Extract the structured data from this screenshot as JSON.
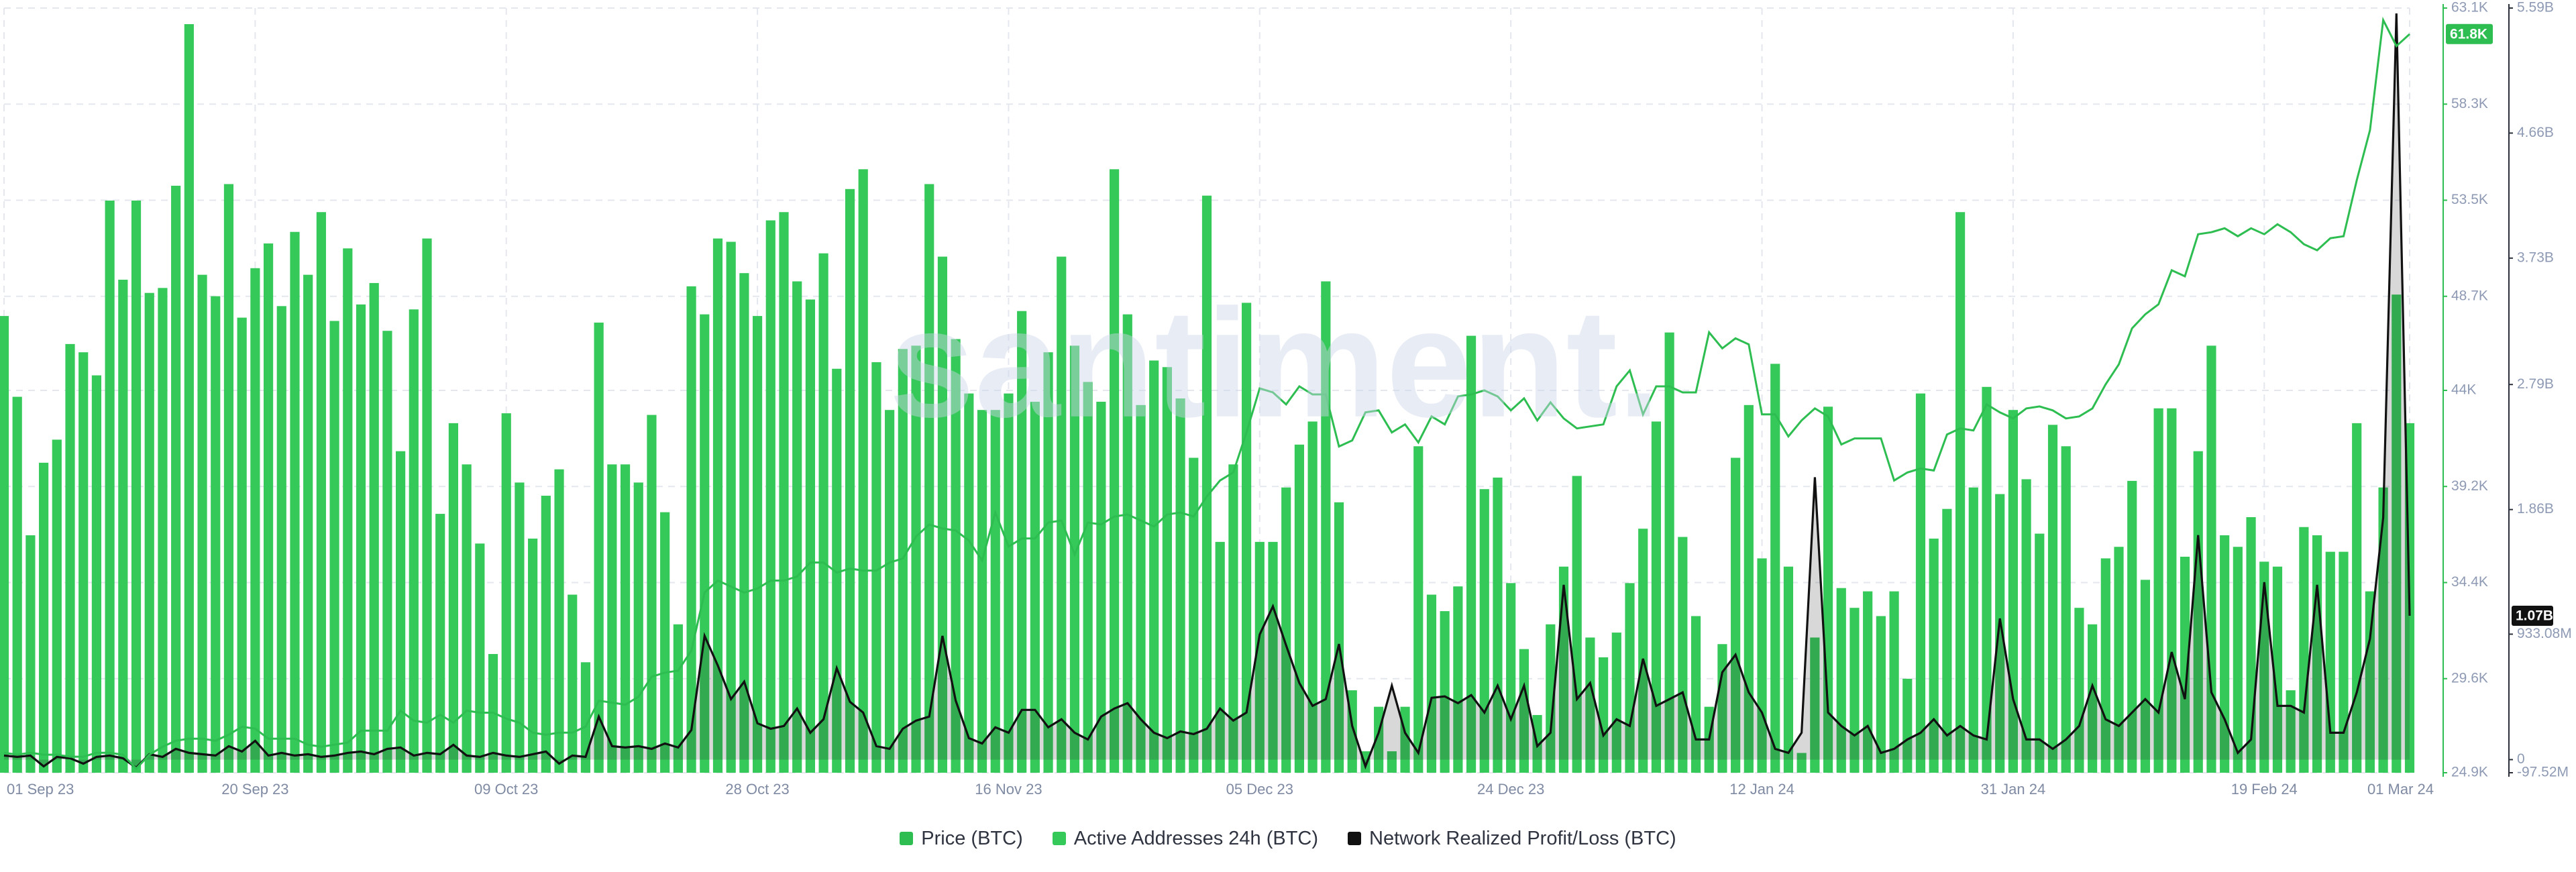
{
  "chart_data": {
    "type": "combo",
    "watermark": "santiment.",
    "grid": true,
    "x": [
      "2023-09-01",
      "2023-09-02",
      "2023-09-03",
      "2023-09-04",
      "2023-09-05",
      "2023-09-06",
      "2023-09-07",
      "2023-09-08",
      "2023-09-09",
      "2023-09-10",
      "2023-09-11",
      "2023-09-12",
      "2023-09-13",
      "2023-09-14",
      "2023-09-15",
      "2023-09-16",
      "2023-09-17",
      "2023-09-18",
      "2023-09-19",
      "2023-09-20",
      "2023-09-21",
      "2023-09-22",
      "2023-09-23",
      "2023-09-24",
      "2023-09-25",
      "2023-09-26",
      "2023-09-27",
      "2023-09-28",
      "2023-09-29",
      "2023-09-30",
      "2023-10-01",
      "2023-10-02",
      "2023-10-03",
      "2023-10-04",
      "2023-10-05",
      "2023-10-06",
      "2023-10-07",
      "2023-10-08",
      "2023-10-09",
      "2023-10-10",
      "2023-10-11",
      "2023-10-12",
      "2023-10-13",
      "2023-10-14",
      "2023-10-15",
      "2023-10-16",
      "2023-10-17",
      "2023-10-18",
      "2023-10-19",
      "2023-10-20",
      "2023-10-21",
      "2023-10-22",
      "2023-10-23",
      "2023-10-24",
      "2023-10-25",
      "2023-10-26",
      "2023-10-27",
      "2023-10-28",
      "2023-10-29",
      "2023-10-30",
      "2023-10-31",
      "2023-11-01",
      "2023-11-02",
      "2023-11-03",
      "2023-11-04",
      "2023-11-05",
      "2023-11-06",
      "2023-11-07",
      "2023-11-08",
      "2023-11-09",
      "2023-11-10",
      "2023-11-11",
      "2023-11-12",
      "2023-11-13",
      "2023-11-14",
      "2023-11-15",
      "2023-11-16",
      "2023-11-17",
      "2023-11-18",
      "2023-11-19",
      "2023-11-20",
      "2023-11-21",
      "2023-11-22",
      "2023-11-23",
      "2023-11-24",
      "2023-11-25",
      "2023-11-26",
      "2023-11-27",
      "2023-11-28",
      "2023-11-29",
      "2023-11-30",
      "2023-12-01",
      "2023-12-02",
      "2023-12-03",
      "2023-12-04",
      "2023-12-05",
      "2023-12-06",
      "2023-12-07",
      "2023-12-08",
      "2023-12-09",
      "2023-12-10",
      "2023-12-11",
      "2023-12-12",
      "2023-12-13",
      "2023-12-14",
      "2023-12-15",
      "2023-12-16",
      "2023-12-17",
      "2023-12-18",
      "2023-12-19",
      "2023-12-20",
      "2023-12-21",
      "2023-12-22",
      "2023-12-23",
      "2023-12-24",
      "2023-12-25",
      "2023-12-26",
      "2023-12-27",
      "2023-12-28",
      "2023-12-29",
      "2023-12-30",
      "2023-12-31",
      "2024-01-01",
      "2024-01-02",
      "2024-01-03",
      "2024-01-04",
      "2024-01-05",
      "2024-01-06",
      "2024-01-07",
      "2024-01-08",
      "2024-01-09",
      "2024-01-10",
      "2024-01-11",
      "2024-01-12",
      "2024-01-13",
      "2024-01-14",
      "2024-01-15",
      "2024-01-16",
      "2024-01-17",
      "2024-01-18",
      "2024-01-19",
      "2024-01-20",
      "2024-01-21",
      "2024-01-22",
      "2024-01-23",
      "2024-01-24",
      "2024-01-25",
      "2024-01-26",
      "2024-01-27",
      "2024-01-28",
      "2024-01-29",
      "2024-01-30",
      "2024-01-31",
      "2024-02-01",
      "2024-02-02",
      "2024-02-03",
      "2024-02-04",
      "2024-02-05",
      "2024-02-06",
      "2024-02-07",
      "2024-02-08",
      "2024-02-09",
      "2024-02-10",
      "2024-02-11",
      "2024-02-12",
      "2024-02-13",
      "2024-02-14",
      "2024-02-15",
      "2024-02-16",
      "2024-02-17",
      "2024-02-18",
      "2024-02-19",
      "2024-02-20",
      "2024-02-21",
      "2024-02-22",
      "2024-02-23",
      "2024-02-24",
      "2024-02-25",
      "2024-02-26",
      "2024-02-27",
      "2024-02-28",
      "2024-02-29",
      "2024-03-01"
    ],
    "xticks": [
      {
        "value": "2023-09-01",
        "label": "01 Sep 23"
      },
      {
        "value": "2023-09-20",
        "label": "20 Sep 23"
      },
      {
        "value": "2023-10-09",
        "label": "09 Oct 23"
      },
      {
        "value": "2023-10-28",
        "label": "28 Oct 23"
      },
      {
        "value": "2023-11-16",
        "label": "16 Nov 23"
      },
      {
        "value": "2023-12-05",
        "label": "05 Dec 23"
      },
      {
        "value": "2023-12-24",
        "label": "24 Dec 23"
      },
      {
        "value": "2024-01-12",
        "label": "12 Jan 24"
      },
      {
        "value": "2024-01-31",
        "label": "31 Jan 24"
      },
      {
        "value": "2024-02-19",
        "label": "19 Feb 24"
      },
      {
        "value": "2024-03-01",
        "label": "01 Mar 24"
      }
    ],
    "ylim": [
      24900,
      63100
    ],
    "yticks": [
      {
        "value": 63100,
        "label": "63.1K"
      },
      {
        "value": 58300,
        "label": "58.3K"
      },
      {
        "value": 53500,
        "label": "53.5K"
      },
      {
        "value": 48700,
        "label": "48.7K"
      },
      {
        "value": 44000,
        "label": "44K"
      },
      {
        "value": 39200,
        "label": "39.2K"
      },
      {
        "value": 34400,
        "label": "34.4K"
      },
      {
        "value": 29600,
        "label": "29.6K"
      },
      {
        "value": 24900,
        "label": "24.9K"
      }
    ],
    "y2lim": [
      -97520000.0,
      5590000000.0
    ],
    "y2ticks": [
      {
        "value": 5590000000.0,
        "label": "5.59B"
      },
      {
        "value": 4660000000.0,
        "label": "4.66B"
      },
      {
        "value": 3730000000.0,
        "label": "3.73B"
      },
      {
        "value": 2790000000.0,
        "label": "2.79B"
      },
      {
        "value": 1860000000.0,
        "label": "1.86B"
      },
      {
        "value": 933080000.0,
        "label": "933.08M"
      },
      0,
      {
        "value": -97520000.0,
        "label": "-97.52M"
      }
    ],
    "series": [
      {
        "name": "Price (BTC)",
        "type": "line",
        "axis": "y",
        "color": "#2dbd50",
        "badge": {
          "value": 61800,
          "label": "61.8K"
        },
        "values": [
          25900,
          25800,
          25900,
          25800,
          25800,
          25700,
          25700,
          25900,
          25900,
          25800,
          25100,
          25800,
          26200,
          26500,
          26600,
          26600,
          26500,
          26800,
          27200,
          27100,
          26600,
          26600,
          26600,
          26300,
          26200,
          26300,
          26400,
          27000,
          27000,
          27000,
          28000,
          27500,
          27400,
          27800,
          27400,
          28000,
          27900,
          27900,
          27600,
          27400,
          26900,
          26800,
          26900,
          26900,
          27200,
          28500,
          28400,
          28300,
          28700,
          29700,
          29900,
          30000,
          31000,
          33900,
          34500,
          34200,
          33900,
          34100,
          34500,
          34500,
          34700,
          35400,
          35400,
          34900,
          35100,
          35000,
          35000,
          35400,
          35600,
          36700,
          37300,
          37100,
          37000,
          36500,
          35500,
          37900,
          36200,
          36600,
          36600,
          37400,
          37500,
          35800,
          37400,
          37300,
          37700,
          37800,
          37500,
          37200,
          37800,
          37900,
          37700,
          38700,
          39500,
          39900,
          41900,
          44100,
          43900,
          43300,
          44200,
          43800,
          43800,
          41200,
          41500,
          42900,
          43000,
          41900,
          42300,
          41400,
          42700,
          42300,
          43700,
          43800,
          44000,
          43700,
          43000,
          43600,
          42500,
          43400,
          42600,
          42100,
          42200,
          42300,
          44200,
          45000,
          42800,
          44200,
          44200,
          43900,
          43900,
          46900,
          46100,
          46600,
          46300,
          42800,
          42800,
          41700,
          42500,
          43100,
          42700,
          41300,
          41600,
          41600,
          41600,
          39500,
          39900,
          40100,
          40000,
          41800,
          42100,
          42000,
          43300,
          42900,
          42600,
          43100,
          43200,
          43000,
          42600,
          42700,
          43100,
          44300,
          45300,
          47100,
          47800,
          48300,
          50000,
          49700,
          51800,
          51900,
          52100,
          51700,
          52100,
          51800,
          52300,
          51900,
          51300,
          51000,
          51600,
          51700,
          54500,
          57000,
          62500,
          61200,
          61800
        ]
      },
      {
        "name": "Active Addresses 24h (BTC)",
        "type": "bar",
        "color": "#35c95a",
        "values": [
          554000,
          456000,
          288000,
          376000,
          404000,
          520000,
          510000,
          482000,
          694000,
          598000,
          694000,
          582000,
          588000,
          712000,
          908000,
          604000,
          578000,
          714000,
          552000,
          612000,
          642000,
          566000,
          656000,
          604000,
          680000,
          548000,
          636000,
          568000,
          594000,
          536000,
          390000,
          562000,
          648000,
          314000,
          424000,
          374000,
          278000,
          144000,
          436000,
          352000,
          284000,
          336000,
          368000,
          216000,
          134000,
          546000,
          374000,
          374000,
          352000,
          434000,
          316000,
          180000,
          590000,
          556000,
          648000,
          644000,
          606000,
          554000,
          670000,
          680000,
          596000,
          574000,
          630000,
          490000,
          708000,
          732000,
          498000,
          440000,
          514000,
          518000,
          714000,
          626000,
          526000,
          460000,
          440000,
          440000,
          460000,
          560000,
          450000,
          510000,
          626000,
          518000,
          474000,
          450000,
          732000,
          556000,
          446000,
          500000,
          492000,
          454000,
          382000,
          700000,
          280000,
          374000,
          570000,
          280000,
          280000,
          346000,
          398000,
          426000,
          596000,
          328000,
          100000,
          26000,
          80000,
          26000,
          80000,
          396000,
          216000,
          196000,
          226000,
          530000,
          344000,
          358000,
          230000,
          150000,
          70000,
          180000,
          250000,
          360000,
          164000,
          140000,
          170000,
          230000,
          296000,
          426000,
          534000,
          286000,
          190000,
          80000,
          156000,
          382000,
          446000,
          260000,
          496000,
          250000,
          24000,
          164000,
          444000,
          224000,
          200000,
          220000,
          190000,
          220000,
          114000,
          460000,
          284000,
          320000,
          680000,
          346000,
          468000,
          338000,
          440000,
          356000,
          290000,
          422000,
          396000,
          200000,
          180000,
          260000,
          274000,
          354000,
          234000,
          442000,
          442000,
          262000,
          390000,
          518000,
          288000,
          274000,
          310000,
          256000,
          250000,
          100000,
          298000,
          288000,
          268000,
          268000,
          424000,
          220000,
          346000,
          580000,
          424000
        ]
      },
      {
        "name": "Network Realized Profit/Loss (BTC)",
        "type": "area",
        "axis": "y2",
        "color": "#111111",
        "badge": {
          "value": 1070000000.0,
          "label": "1.07B"
        },
        "values": [
          30000000.0,
          20000000.0,
          30000000.0,
          -50000000.0,
          20000000.0,
          10000000.0,
          -30000000.0,
          20000000.0,
          30000000.0,
          10000000.0,
          -60000000.0,
          40000000.0,
          20000000.0,
          80000000.0,
          50000000.0,
          40000000.0,
          30000000.0,
          100000000.0,
          60000000.0,
          140000000.0,
          30000000.0,
          50000000.0,
          30000000.0,
          40000000.0,
          20000000.0,
          30000000.0,
          50000000.0,
          60000000.0,
          40000000.0,
          80000000.0,
          90000000.0,
          30000000.0,
          50000000.0,
          40000000.0,
          110000000.0,
          30000000.0,
          20000000.0,
          50000000.0,
          30000000.0,
          20000000.0,
          40000000.0,
          60000000.0,
          -30000000.0,
          30000000.0,
          20000000.0,
          320000000.0,
          100000000.0,
          90000000.0,
          100000000.0,
          80000000.0,
          120000000.0,
          90000000.0,
          220000000.0,
          920000000.0,
          700000000.0,
          450000000.0,
          580000000.0,
          270000000.0,
          230000000.0,
          250000000.0,
          380000000.0,
          200000000.0,
          300000000.0,
          680000000.0,
          430000000.0,
          350000000.0,
          100000000.0,
          80000000.0,
          230000000.0,
          290000000.0,
          320000000.0,
          920000000.0,
          440000000.0,
          160000000.0,
          120000000.0,
          240000000.0,
          200000000.0,
          370000000.0,
          370000000.0,
          240000000.0,
          300000000.0,
          200000000.0,
          150000000.0,
          320000000.0,
          380000000.0,
          420000000.0,
          300000000.0,
          200000000.0,
          160000000.0,
          210000000.0,
          190000000.0,
          230000000.0,
          380000000.0,
          290000000.0,
          350000000.0,
          930000000.0,
          1140000000.0,
          850000000.0,
          570000000.0,
          400000000.0,
          450000000.0,
          860000000.0,
          250000000.0,
          -50000000.0,
          200000000.0,
          550000000.0,
          200000000.0,
          50000000.0,
          460000000.0,
          470000000.0,
          420000000.0,
          480000000.0,
          350000000.0,
          550000000.0,
          300000000.0,
          550000000.0,
          100000000.0,
          200000000.0,
          1300000000.0,
          450000000.0,
          570000000.0,
          180000000.0,
          300000000.0,
          250000000.0,
          750000000.0,
          400000000.0,
          450000000.0,
          500000000.0,
          150000000.0,
          150000000.0,
          650000000.0,
          780000000.0,
          500000000.0,
          350000000.0,
          80000000.0,
          50000000.0,
          200000000.0,
          2100000000.0,
          350000000.0,
          250000000.0,
          180000000.0,
          250000000.0,
          50000000.0,
          80000000.0,
          150000000.0,
          200000000.0,
          300000000.0,
          180000000.0,
          250000000.0,
          180000000.0,
          150000000.0,
          1050000000.0,
          450000000.0,
          150000000.0,
          150000000.0,
          80000000.0,
          150000000.0,
          250000000.0,
          550000000.0,
          300000000.0,
          250000000.0,
          350000000.0,
          450000000.0,
          350000000.0,
          800000000.0,
          450000000.0,
          1670000000.0,
          500000000.0,
          300000000.0,
          50000000.0,
          150000000.0,
          1320000000.0,
          400000000.0,
          400000000.0,
          350000000.0,
          1300000000.0,
          200000000.0,
          200000000.0,
          500000000.0,
          900000000.0,
          1800000000.0,
          5550000000.0,
          1070000000.0
        ]
      }
    ]
  }
}
